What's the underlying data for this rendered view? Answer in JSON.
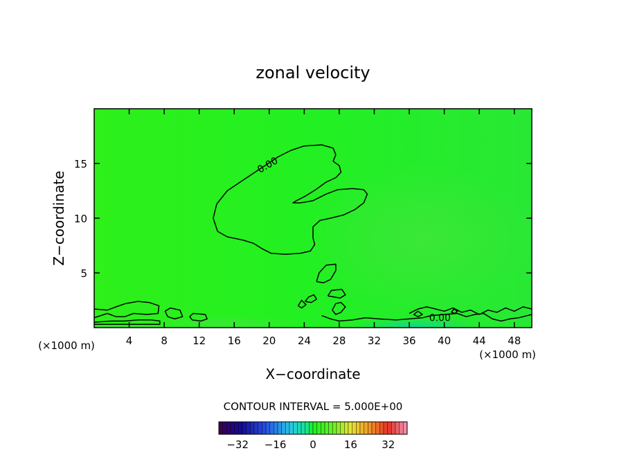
{
  "chart_data": {
    "type": "heatmap",
    "title": "zonal velocity",
    "xlabel": "X−coordinate",
    "ylabel": "Z−coordinate",
    "x_unit_left": "(×1000 m)",
    "x_unit_right": "(×1000 m)",
    "xlim": [
      0,
      50
    ],
    "ylim": [
      0,
      20
    ],
    "xticks": [
      4,
      8,
      12,
      16,
      20,
      24,
      28,
      32,
      36,
      40,
      44,
      48
    ],
    "yticks": [
      5,
      10,
      15
    ],
    "field_level": 0,
    "contour_label": "0.00",
    "contour_interval_text": "CONTOUR INTERVAL = 5.000E+00",
    "colorbar": {
      "min": -40,
      "max": 40,
      "ticks": [
        -32,
        -16,
        0,
        16,
        32
      ],
      "tick_labels": [
        "−32",
        "−16",
        "0",
        "16",
        "32"
      ]
    },
    "zero_contours": [
      [
        [
          13.6,
          10.0
        ],
        [
          14.0,
          11.3
        ],
        [
          15.2,
          12.5
        ],
        [
          16.5,
          13.2
        ],
        [
          18.0,
          14.0
        ],
        [
          19.5,
          14.8
        ],
        [
          21.0,
          15.6
        ],
        [
          22.5,
          16.2
        ],
        [
          24.0,
          16.6
        ],
        [
          26.0,
          16.7
        ],
        [
          27.3,
          16.4
        ],
        [
          27.6,
          15.8
        ],
        [
          27.3,
          15.2
        ],
        [
          28.0,
          14.8
        ],
        [
          28.2,
          14.2
        ],
        [
          27.6,
          13.7
        ],
        [
          26.5,
          13.3
        ],
        [
          25.3,
          12.6
        ],
        [
          24.1,
          12.0
        ],
        [
          23.1,
          11.6
        ],
        [
          22.7,
          11.4
        ],
        [
          23.6,
          11.4
        ],
        [
          25.0,
          11.6
        ],
        [
          26.5,
          12.2
        ],
        [
          27.8,
          12.6
        ],
        [
          29.5,
          12.7
        ],
        [
          30.8,
          12.6
        ],
        [
          31.2,
          12.2
        ],
        [
          30.8,
          11.4
        ],
        [
          29.8,
          10.8
        ],
        [
          28.5,
          10.3
        ],
        [
          27.0,
          10.0
        ],
        [
          25.8,
          9.8
        ],
        [
          25.0,
          9.2
        ],
        [
          25.0,
          8.2
        ],
        [
          25.2,
          7.6
        ],
        [
          24.7,
          7.0
        ],
        [
          23.6,
          6.8
        ],
        [
          21.8,
          6.7
        ],
        [
          20.2,
          6.8
        ],
        [
          19.2,
          7.2
        ],
        [
          18.2,
          7.7
        ],
        [
          17.0,
          8.0
        ],
        [
          15.2,
          8.3
        ],
        [
          14.1,
          8.8
        ],
        [
          13.6,
          10.0
        ]
      ],
      [
        [
          25.4,
          4.2
        ],
        [
          25.7,
          5.0
        ],
        [
          26.5,
          5.7
        ],
        [
          27.6,
          5.8
        ],
        [
          27.6,
          5.2
        ],
        [
          27.0,
          4.4
        ],
        [
          26.2,
          4.1
        ],
        [
          25.4,
          4.2
        ]
      ],
      [
        [
          26.7,
          2.9
        ],
        [
          27.1,
          3.4
        ],
        [
          28.3,
          3.5
        ],
        [
          28.7,
          3.0
        ],
        [
          28.1,
          2.7
        ],
        [
          26.7,
          2.9
        ]
      ],
      [
        [
          24.1,
          2.4
        ],
        [
          24.5,
          2.8
        ],
        [
          25.1,
          3.0
        ],
        [
          25.4,
          2.6
        ],
        [
          24.8,
          2.3
        ],
        [
          24.1,
          2.4
        ]
      ],
      [
        [
          23.3,
          2.0
        ],
        [
          23.7,
          2.5
        ],
        [
          24.2,
          2.1
        ],
        [
          23.7,
          1.8
        ],
        [
          23.3,
          2.0
        ]
      ],
      [
        [
          27.2,
          1.6
        ],
        [
          27.6,
          2.2
        ],
        [
          28.2,
          2.3
        ],
        [
          28.7,
          1.9
        ],
        [
          28.2,
          1.4
        ],
        [
          27.6,
          1.2
        ],
        [
          27.2,
          1.6
        ]
      ],
      [
        [
          0.0,
          1.7
        ],
        [
          1.5,
          1.6
        ],
        [
          2.5,
          1.9
        ],
        [
          3.6,
          2.2
        ],
        [
          5.0,
          2.4
        ],
        [
          6.3,
          2.3
        ],
        [
          7.4,
          2.0
        ],
        [
          7.3,
          1.3
        ],
        [
          6.0,
          1.2
        ],
        [
          4.5,
          1.3
        ],
        [
          3.5,
          1.0
        ],
        [
          2.5,
          1.0
        ],
        [
          1.5,
          1.3
        ],
        [
          0.0,
          0.9
        ],
        [
          0.0,
          1.7
        ]
      ],
      [
        [
          8.1,
          1.5
        ],
        [
          8.7,
          1.8
        ],
        [
          9.8,
          1.6
        ],
        [
          10.1,
          1.0
        ],
        [
          9.2,
          0.8
        ],
        [
          8.4,
          1.0
        ],
        [
          8.1,
          1.5
        ]
      ],
      [
        [
          10.9,
          1.0
        ],
        [
          11.3,
          1.3
        ],
        [
          12.7,
          1.2
        ],
        [
          12.9,
          0.8
        ],
        [
          12.2,
          0.6
        ],
        [
          11.2,
          0.7
        ],
        [
          10.9,
          1.0
        ]
      ],
      [
        [
          0.0,
          0.5
        ],
        [
          2.0,
          0.6
        ],
        [
          3.5,
          0.6
        ],
        [
          5.0,
          0.7
        ],
        [
          6.5,
          0.7
        ],
        [
          7.5,
          0.6
        ],
        [
          7.5,
          0.3
        ],
        [
          0.0,
          0.3
        ],
        [
          0.0,
          0.5
        ]
      ],
      [
        [
          26.0,
          1.1
        ],
        [
          27.0,
          0.8
        ],
        [
          28.0,
          0.6
        ],
        [
          29.5,
          0.7
        ],
        [
          31.0,
          0.9
        ],
        [
          32.5,
          0.8
        ],
        [
          34.5,
          0.7
        ],
        [
          36.0,
          0.8
        ],
        [
          37.5,
          0.9
        ],
        [
          38.5,
          1.1
        ],
        [
          40.0,
          1.2
        ],
        [
          41.5,
          1.3
        ],
        [
          42.5,
          1.0
        ],
        [
          43.5,
          1.2
        ],
        [
          44.5,
          1.3
        ],
        [
          45.5,
          0.8
        ],
        [
          46.5,
          0.6
        ],
        [
          47.5,
          0.8
        ],
        [
          48.5,
          0.9
        ],
        [
          50.0,
          1.2
        ]
      ],
      [
        [
          36.0,
          1.3
        ],
        [
          37.0,
          1.7
        ],
        [
          38.0,
          1.9
        ],
        [
          39.0,
          1.7
        ],
        [
          40.0,
          1.5
        ],
        [
          41.0,
          1.8
        ],
        [
          42.0,
          1.4
        ],
        [
          43.0,
          1.6
        ],
        [
          44.0,
          1.2
        ],
        [
          45.0,
          1.6
        ],
        [
          46.0,
          1.4
        ],
        [
          47.0,
          1.8
        ],
        [
          48.0,
          1.5
        ],
        [
          49.0,
          1.9
        ],
        [
          50.0,
          1.7
        ]
      ],
      [
        [
          40.8,
          1.4
        ],
        [
          41.1,
          1.7
        ],
        [
          41.5,
          1.5
        ],
        [
          41.2,
          1.3
        ],
        [
          40.8,
          1.4
        ]
      ],
      [
        [
          36.5,
          1.2
        ],
        [
          37.0,
          1.5
        ],
        [
          37.5,
          1.2
        ],
        [
          37.0,
          1.0
        ],
        [
          36.5,
          1.2
        ]
      ]
    ]
  }
}
